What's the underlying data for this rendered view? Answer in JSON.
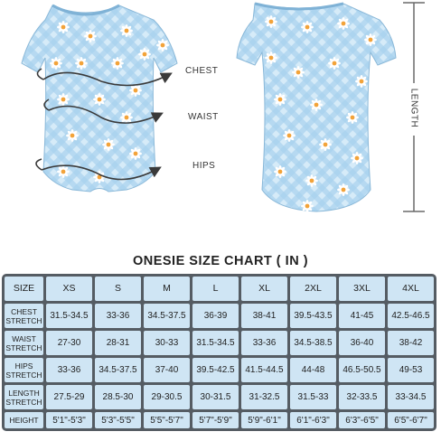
{
  "figure": {
    "measure_labels": {
      "chest": "CHEST",
      "waist": "WAIST",
      "hips": "HIPS",
      "length": "LENGTH"
    },
    "colors": {
      "fabric_blue": "#a8d2ee",
      "fabric_light": "#d6ebf8",
      "daisy_petal": "#ffffff",
      "daisy_center": "#f2a33a",
      "arrow": "#3a3a3a",
      "length_bar": "#6a6a6a"
    }
  },
  "chart": {
    "title": "ONESIE SIZE CHART ( IN )",
    "header_label": "SIZE",
    "sizes": [
      "XS",
      "S",
      "M",
      "L",
      "XL",
      "2XL",
      "3XL",
      "4XL"
    ],
    "rows": [
      {
        "label": "CHEST STRETCH",
        "values": [
          "31.5-34.5",
          "33-36",
          "34.5-37.5",
          "36-39",
          "38-41",
          "39.5-43.5",
          "41-45",
          "42.5-46.5"
        ]
      },
      {
        "label": "WAIST STRETCH",
        "values": [
          "27-30",
          "28-31",
          "30-33",
          "31.5-34.5",
          "33-36",
          "34.5-38.5",
          "36-40",
          "38-42"
        ]
      },
      {
        "label": "HIPS STRETCH",
        "values": [
          "33-36",
          "34.5-37.5",
          "37-40",
          "39.5-42.5",
          "41.5-44.5",
          "44-48",
          "46.5-50.5",
          "49-53"
        ]
      },
      {
        "label": "LENGTH STRETCH",
        "values": [
          "27.5-29",
          "28.5-30",
          "29-30.5",
          "30-31.5",
          "31-32.5",
          "31.5-33",
          "32-33.5",
          "33-34.5"
        ]
      },
      {
        "label": "HEIGHT",
        "values": [
          "5'1\"-5'3\"",
          "5'3\"-5'5\"",
          "5'5\"-5'7\"",
          "5'7\"-5'9\"",
          "5'9\"-6'1\"",
          "6'1\"-6'3\"",
          "6'3\"-6'5\"",
          "6'5\"-6'7\""
        ]
      }
    ]
  }
}
